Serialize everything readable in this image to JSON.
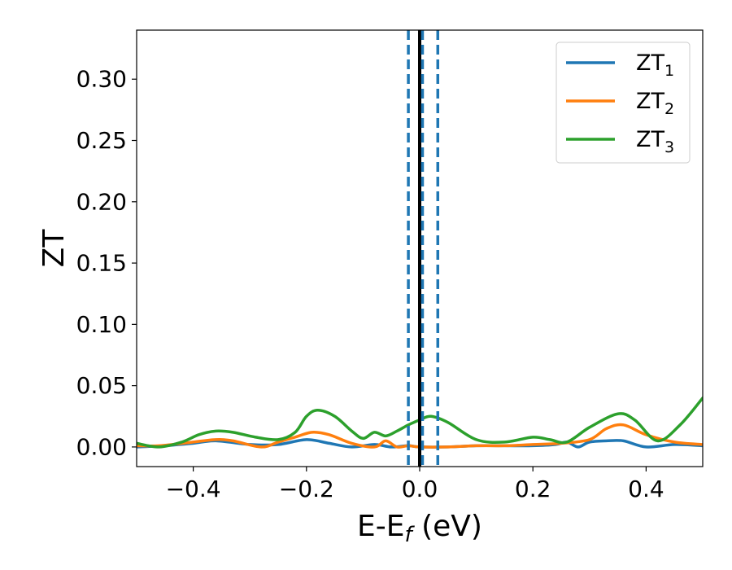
{
  "chart_data": {
    "type": "line",
    "xlabel": "E-E",
    "xlabel_sub": "f",
    "xlabel_unit": " (eV)",
    "ylabel": "ZT",
    "xlim": [
      -0.5,
      0.5
    ],
    "ylim": [
      -0.016,
      0.34
    ],
    "xticks": [
      -0.4,
      -0.2,
      0.0,
      0.2,
      0.4
    ],
    "xtick_labels": [
      "−0.4",
      "−0.2",
      "0.0",
      "0.2",
      "0.4"
    ],
    "yticks": [
      0.0,
      0.05,
      0.1,
      0.15,
      0.2,
      0.25,
      0.3
    ],
    "ytick_labels": [
      "0.00",
      "0.05",
      "0.10",
      "0.15",
      "0.20",
      "0.25",
      "0.30"
    ],
    "grid": false,
    "legend_placement": "top-right",
    "series": [
      {
        "name": "ZT",
        "name_sub": "1",
        "color": "#1f77b4",
        "x": [
          -0.5,
          -0.45,
          -0.4,
          -0.36,
          -0.3,
          -0.25,
          -0.2,
          -0.16,
          -0.12,
          -0.08,
          -0.05,
          -0.02,
          0.0,
          0.05,
          0.1,
          0.15,
          0.2,
          0.24,
          0.26,
          0.28,
          0.3,
          0.33,
          0.36,
          0.4,
          0.45,
          0.5
        ],
        "y": [
          0.0,
          0.001,
          0.003,
          0.005,
          0.002,
          0.002,
          0.006,
          0.003,
          0.0,
          0.002,
          0.0,
          0.001,
          0.0,
          0.0,
          0.001,
          0.001,
          0.001,
          0.002,
          0.004,
          0.0,
          0.004,
          0.005,
          0.005,
          0.0,
          0.002,
          0.001
        ]
      },
      {
        "name": "ZT",
        "name_sub": "2",
        "color": "#ff7f0e",
        "x": [
          -0.5,
          -0.46,
          -0.4,
          -0.36,
          -0.33,
          -0.28,
          -0.25,
          -0.22,
          -0.19,
          -0.16,
          -0.12,
          -0.08,
          -0.06,
          -0.04,
          -0.02,
          0.0,
          0.05,
          0.1,
          0.15,
          0.2,
          0.25,
          0.3,
          0.33,
          0.36,
          0.4,
          0.45,
          0.5
        ],
        "y": [
          0.001,
          0.001,
          0.004,
          0.006,
          0.005,
          0.0,
          0.004,
          0.008,
          0.012,
          0.01,
          0.003,
          0.0,
          0.005,
          0.0,
          0.001,
          0.0,
          0.0,
          0.001,
          0.001,
          0.002,
          0.003,
          0.006,
          0.015,
          0.018,
          0.01,
          0.004,
          0.002
        ]
      },
      {
        "name": "ZT",
        "name_sub": "3",
        "color": "#2ca02c",
        "x": [
          -0.5,
          -0.46,
          -0.42,
          -0.39,
          -0.36,
          -0.33,
          -0.29,
          -0.25,
          -0.22,
          -0.2,
          -0.18,
          -0.15,
          -0.12,
          -0.1,
          -0.08,
          -0.06,
          -0.04,
          -0.02,
          0.0,
          0.02,
          0.05,
          0.1,
          0.15,
          0.2,
          0.23,
          0.26,
          0.3,
          0.35,
          0.38,
          0.42,
          0.46,
          0.5
        ],
        "y": [
          0.003,
          0.0,
          0.004,
          0.01,
          0.013,
          0.012,
          0.008,
          0.006,
          0.012,
          0.025,
          0.03,
          0.025,
          0.013,
          0.007,
          0.012,
          0.009,
          0.013,
          0.018,
          0.022,
          0.025,
          0.02,
          0.006,
          0.004,
          0.008,
          0.006,
          0.004,
          0.016,
          0.027,
          0.022,
          0.005,
          0.018,
          0.04
        ]
      }
    ],
    "vlines": [
      {
        "x": 0.0,
        "style": "solid",
        "color": "#000000"
      },
      {
        "x": -0.02,
        "style": "dashed",
        "color": "#1f77b4"
      },
      {
        "x": 0.005,
        "style": "dashed",
        "color": "#1f77b4"
      },
      {
        "x": 0.032,
        "style": "dashed",
        "color": "#1f77b4"
      }
    ]
  }
}
